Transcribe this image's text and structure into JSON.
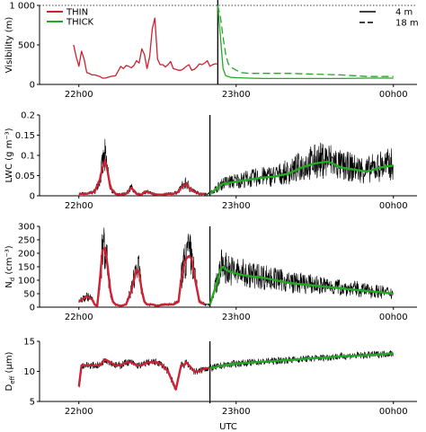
{
  "figure": {
    "xlabel": "UTC"
  },
  "chart_data": [
    {
      "type": "line",
      "ylabel": "Visibility (m)",
      "ylim": [
        0,
        1000
      ],
      "yticks": [
        "0",
        "500",
        "1 000"
      ],
      "xticks": [
        "22h00",
        "23h00",
        "00h00"
      ],
      "x_minutes": [
        0,
        60,
        120
      ],
      "xlim_minutes": [
        -15,
        129
      ],
      "event_line_minutes": 53,
      "legend_left": {
        "position": "top-left",
        "entries": [
          {
            "name": "THIN",
            "color": "#cc2233"
          },
          {
            "name": "THICK",
            "color": "#22aa22"
          }
        ]
      },
      "legend_right": {
        "position": "top-right",
        "entries": [
          {
            "name": "4 m",
            "style": "solid"
          },
          {
            "name": "18 m",
            "style": "dashed"
          }
        ]
      },
      "series": [
        {
          "name": "THIN",
          "color": "#cc2233",
          "style": "solid",
          "x": [
            -2,
            -1,
            0,
            1,
            2,
            3,
            4,
            5,
            6,
            7,
            8,
            9,
            10,
            12,
            14,
            16,
            17,
            18,
            19,
            20,
            21,
            22,
            23,
            24,
            25,
            26,
            27,
            28,
            29,
            30,
            31,
            32,
            33,
            34,
            35,
            36,
            37,
            38,
            39,
            40,
            41,
            42,
            43,
            44,
            45,
            46,
            47,
            48,
            49,
            50,
            51,
            52,
            53
          ],
          "y": [
            500,
            350,
            230,
            420,
            320,
            150,
            140,
            120,
            120,
            110,
            100,
            80,
            80,
            100,
            110,
            230,
            200,
            240,
            230,
            210,
            240,
            300,
            270,
            450,
            380,
            200,
            350,
            700,
            840,
            320,
            250,
            250,
            220,
            250,
            290,
            200,
            190,
            180,
            180,
            200,
            230,
            250,
            180,
            190,
            220,
            260,
            250,
            270,
            300,
            230,
            250,
            260,
            260
          ]
        },
        {
          "name": "THICK",
          "color": "#22aa22",
          "style": "solid",
          "x": [
            53,
            54,
            55,
            56,
            57,
            58,
            60,
            65,
            70,
            80,
            90,
            100,
            110,
            115,
            120
          ],
          "y": [
            1000,
            600,
            200,
            110,
            100,
            90,
            85,
            80,
            75,
            75,
            75,
            75,
            80,
            80,
            80
          ]
        },
        {
          "name": "THICK",
          "color": "#22aa22",
          "style": "dashed",
          "x": [
            53,
            54,
            55,
            56,
            57,
            58,
            59,
            60,
            62,
            65,
            70,
            80,
            90,
            100,
            110,
            115,
            120
          ],
          "y": [
            1000,
            850,
            600,
            380,
            260,
            220,
            200,
            180,
            150,
            140,
            140,
            140,
            130,
            120,
            100,
            100,
            100
          ]
        }
      ]
    },
    {
      "type": "line",
      "ylabel": "LWC (g m⁻³)",
      "ylim": [
        0,
        0.2
      ],
      "yticks": [
        "0",
        "0.05",
        "0.1",
        "0.15",
        "0.2"
      ],
      "xticks": [
        "22h00",
        "23h00",
        "00h00"
      ],
      "x_minutes": [
        0,
        60,
        120
      ],
      "xlim_minutes": [
        -15,
        129
      ],
      "event_line_minutes": 50,
      "series": [
        {
          "name": "THIN",
          "color": "#cc2233",
          "x": [
            0,
            3,
            6,
            8,
            9,
            10,
            11,
            12,
            14,
            16,
            18,
            20,
            22,
            24,
            25,
            26,
            28,
            30,
            32,
            34,
            36,
            38,
            39,
            40,
            41,
            42,
            43,
            44,
            46,
            48
          ],
          "y": [
            0.005,
            0.005,
            0.01,
            0.04,
            0.07,
            0.088,
            0.06,
            0.02,
            0.005,
            0.003,
            0.005,
            0.02,
            0.005,
            0.003,
            0.01,
            0.01,
            0.005,
            0.003,
            0.003,
            0.005,
            0.005,
            0.01,
            0.02,
            0.025,
            0.03,
            0.02,
            0.015,
            0.01,
            0.005,
            0.005
          ]
        },
        {
          "name": "THICK",
          "color": "#22aa22",
          "x": [
            50,
            52,
            55,
            60,
            65,
            70,
            75,
            80,
            85,
            90,
            95,
            100,
            105,
            110,
            115,
            120
          ],
          "y": [
            0.005,
            0.015,
            0.03,
            0.035,
            0.04,
            0.045,
            0.048,
            0.055,
            0.07,
            0.08,
            0.085,
            0.07,
            0.065,
            0.06,
            0.07,
            0.075
          ]
        }
      ]
    },
    {
      "type": "line",
      "ylabel": "N_d (cm⁻³)",
      "ylim": [
        0,
        300
      ],
      "yticks": [
        "0",
        "50",
        "100",
        "150",
        "200",
        "250",
        "300"
      ],
      "xticks": [
        "22h00",
        "23h00",
        "00h00"
      ],
      "x_minutes": [
        0,
        60,
        120
      ],
      "xlim_minutes": [
        -15,
        129
      ],
      "event_line_minutes": 50,
      "series": [
        {
          "name": "THIN",
          "color": "#cc2233",
          "x": [
            0,
            3,
            5,
            6,
            7,
            8,
            9,
            10,
            11,
            12,
            13,
            14,
            16,
            18,
            20,
            22,
            23,
            24,
            25,
            26,
            27,
            28,
            30,
            32,
            34,
            36,
            38,
            39,
            40,
            41,
            42,
            43,
            44,
            46,
            48
          ],
          "y": [
            20,
            40,
            30,
            10,
            5,
            100,
            210,
            220,
            150,
            60,
            20,
            10,
            5,
            10,
            60,
            140,
            130,
            60,
            20,
            10,
            10,
            10,
            5,
            10,
            10,
            10,
            20,
            100,
            150,
            180,
            190,
            180,
            120,
            20,
            10
          ]
        },
        {
          "name": "THICK",
          "color": "#22aa22",
          "x": [
            50,
            51,
            52,
            53,
            54,
            55,
            56,
            58,
            60,
            62,
            65,
            70,
            75,
            80,
            85,
            90,
            95,
            100,
            105,
            110,
            115,
            120
          ],
          "y": [
            10,
            40,
            70,
            100,
            140,
            150,
            140,
            130,
            125,
            120,
            115,
            110,
            100,
            90,
            85,
            80,
            75,
            70,
            65,
            60,
            55,
            50
          ]
        }
      ]
    },
    {
      "type": "line",
      "ylabel": "D_eff (µm)",
      "ylim": [
        5,
        15
      ],
      "yticks": [
        "5",
        "10",
        "15"
      ],
      "xticks": [
        "22h00",
        "23h00",
        "00h00"
      ],
      "x_minutes": [
        0,
        60,
        120
      ],
      "xlim_minutes": [
        -15,
        129
      ],
      "event_line_minutes": 50,
      "series": [
        {
          "name": "THIN",
          "color": "#cc2233",
          "x": [
            0,
            1,
            2,
            4,
            6,
            8,
            10,
            12,
            14,
            16,
            18,
            20,
            22,
            24,
            26,
            28,
            30,
            32,
            34,
            35,
            36,
            37,
            38,
            39,
            40,
            41,
            42,
            44,
            46,
            48,
            50
          ],
          "y": [
            7.5,
            11,
            11,
            11,
            11,
            11,
            12,
            11.5,
            11,
            11,
            11.5,
            11.5,
            11,
            11,
            11.5,
            11.5,
            11.5,
            11,
            10,
            9,
            8,
            7,
            9,
            11,
            11,
            11.5,
            11,
            10,
            10,
            10.5,
            10.5
          ]
        },
        {
          "name": "THICK",
          "color": "#22aa22",
          "x": [
            50,
            55,
            60,
            70,
            80,
            90,
            100,
            110,
            120
          ],
          "y": [
            10.5,
            11,
            11.3,
            11.6,
            11.9,
            12.2,
            12.5,
            12.7,
            13
          ]
        }
      ]
    }
  ]
}
